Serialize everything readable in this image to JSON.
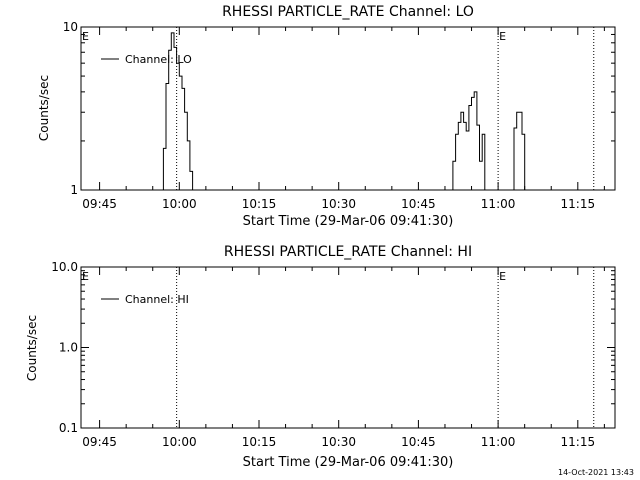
{
  "footer": {
    "timestamp": "14-Oct-2021 13:43"
  },
  "chart_data": [
    {
      "type": "line",
      "title": "RHESSI PARTICLE_RATE Channel: LO",
      "xlabel": "Start Time (29-Mar-06 09:41:30)",
      "ylabel": "Counts/sec",
      "yscale": "log",
      "ylim": [
        1,
        10
      ],
      "xlim": [
        "09:41:30",
        "11:22:00"
      ],
      "xticks": [
        "09:45",
        "10:00",
        "10:15",
        "10:30",
        "10:45",
        "11:00",
        "11:15"
      ],
      "yticks": [
        "1",
        "10"
      ],
      "grid": false,
      "legend": "top-left",
      "series": [
        {
          "name": "Channel: LO",
          "points": [
            [
              "09:56:30",
              1
            ],
            [
              "09:57:00",
              1.8
            ],
            [
              "09:57:30",
              4.5
            ],
            [
              "09:58:00",
              7.2
            ],
            [
              "09:58:30",
              9.2
            ],
            [
              "09:59:00",
              7.5
            ],
            [
              "09:59:30",
              6.0
            ],
            [
              "10:00:00",
              5.0
            ],
            [
              "10:00:30",
              4.2
            ],
            [
              "10:01:00",
              3.0
            ],
            [
              "10:01:30",
              2.0
            ],
            [
              "10:02:00",
              1.3
            ],
            [
              "10:02:30",
              1
            ],
            [
              "10:51:00",
              1
            ],
            [
              "10:51:30",
              1.5
            ],
            [
              "10:52:00",
              2.2
            ],
            [
              "10:52:30",
              2.6
            ],
            [
              "10:53:00",
              3.0
            ],
            [
              "10:53:30",
              2.6
            ],
            [
              "10:54:00",
              2.3
            ],
            [
              "10:54:30",
              3.3
            ],
            [
              "10:55:00",
              3.7
            ],
            [
              "10:55:30",
              4.0
            ],
            [
              "10:56:00",
              2.5
            ],
            [
              "10:56:30",
              1.5
            ],
            [
              "10:57:00",
              2.2
            ],
            [
              "10:57:30",
              1
            ],
            [
              "11:02:30",
              1
            ],
            [
              "11:03:00",
              2.4
            ],
            [
              "11:03:30",
              3.0
            ],
            [
              "11:04:00",
              3.0
            ],
            [
              "11:04:30",
              2.2
            ],
            [
              "11:05:00",
              1
            ]
          ]
        }
      ],
      "dotted_lines": [
        "09:59:30",
        "11:00:00",
        "11:18:00"
      ],
      "markers": [
        {
          "label": "E",
          "time": "09:41:30"
        },
        {
          "label": "E",
          "time": "11:00:00"
        }
      ]
    },
    {
      "type": "line",
      "title": "RHESSI PARTICLE_RATE Channel: HI",
      "xlabel": "Start Time (29-Mar-06 09:41:30)",
      "ylabel": "Counts/sec",
      "yscale": "log",
      "ylim": [
        0.1,
        10
      ],
      "xlim": [
        "09:41:30",
        "11:22:00"
      ],
      "xticks": [
        "09:45",
        "10:00",
        "10:15",
        "10:30",
        "10:45",
        "11:00",
        "11:15"
      ],
      "yticks": [
        "0.1",
        "1.0",
        "10.0"
      ],
      "grid": false,
      "legend": "top-left",
      "series": [
        {
          "name": "Channel: HI",
          "points": []
        }
      ],
      "dotted_lines": [
        "09:59:30",
        "11:00:00",
        "11:18:00"
      ],
      "markers": [
        {
          "label": "E",
          "time": "09:41:30"
        },
        {
          "label": "E",
          "time": "11:00:00"
        }
      ]
    }
  ]
}
